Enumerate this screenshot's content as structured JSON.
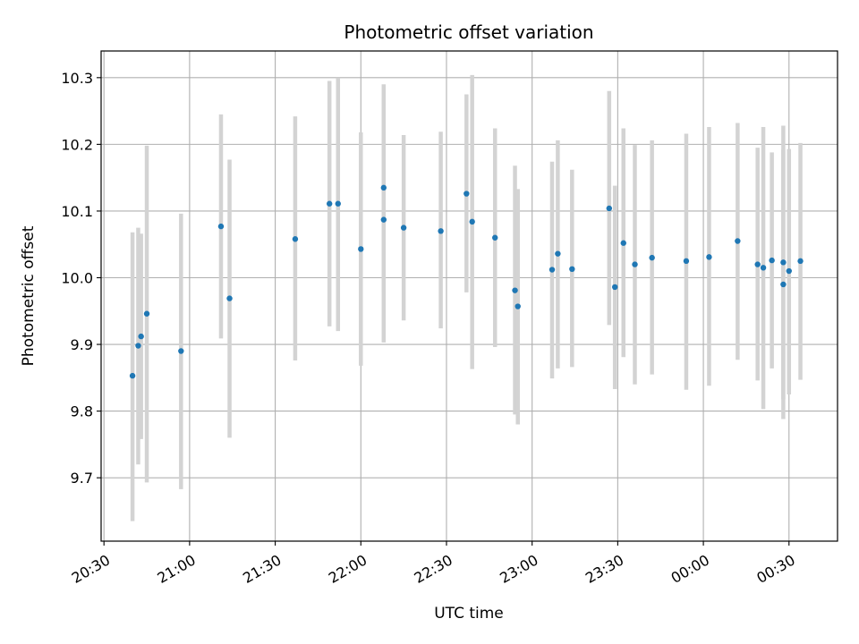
{
  "chart_data": {
    "type": "scatter",
    "title": "Photometric offset variation",
    "xlabel": "UTC time",
    "ylabel": "Photometric offset",
    "x_ticks": [
      "20:30",
      "21:00",
      "21:30",
      "22:00",
      "22:30",
      "23:00",
      "23:30",
      "00:00",
      "00:30"
    ],
    "y_ticks": [
      "9.7",
      "9.8",
      "9.9",
      "10.0",
      "10.1",
      "10.2",
      "10.3"
    ],
    "ylim": [
      9.605,
      10.34
    ],
    "xlim": [
      "20:29",
      "00:47"
    ],
    "grid": true,
    "colors": {
      "points": "#1f77b4",
      "errorbars": "#d3d3d3",
      "grid": "#b0b0b0"
    },
    "points": [
      {
        "x": "20:40",
        "y": 9.853,
        "err_low": 9.635,
        "err_high": 10.068
      },
      {
        "x": "20:42",
        "y": 9.898,
        "err_low": 9.72,
        "err_high": 10.075
      },
      {
        "x": "20:43",
        "y": 9.912,
        "err_low": 9.758,
        "err_high": 10.066
      },
      {
        "x": "20:45",
        "y": 9.946,
        "err_low": 9.693,
        "err_high": 10.198
      },
      {
        "x": "20:57",
        "y": 9.89,
        "err_low": 9.683,
        "err_high": 10.096
      },
      {
        "x": "21:11",
        "y": 10.077,
        "err_low": 9.909,
        "err_high": 10.245
      },
      {
        "x": "21:14",
        "y": 9.969,
        "err_low": 9.76,
        "err_high": 10.177
      },
      {
        "x": "21:37",
        "y": 10.058,
        "err_low": 9.876,
        "err_high": 10.242
      },
      {
        "x": "21:49",
        "y": 10.111,
        "err_low": 9.927,
        "err_high": 10.295
      },
      {
        "x": "21:52",
        "y": 10.111,
        "err_low": 9.92,
        "err_high": 10.3
      },
      {
        "x": "22:00",
        "y": 10.043,
        "err_low": 9.868,
        "err_high": 10.218
      },
      {
        "x": "22:08",
        "y": 10.087,
        "err_low": 9.903,
        "err_high": 10.27
      },
      {
        "x": "22:08",
        "y": 10.135,
        "err_low": 9.98,
        "err_high": 10.29
      },
      {
        "x": "22:15",
        "y": 10.075,
        "err_low": 9.936,
        "err_high": 10.214
      },
      {
        "x": "22:28",
        "y": 10.07,
        "err_low": 9.924,
        "err_high": 10.219
      },
      {
        "x": "22:37",
        "y": 10.126,
        "err_low": 9.978,
        "err_high": 10.275
      },
      {
        "x": "22:39",
        "y": 10.084,
        "err_low": 9.863,
        "err_high": 10.304
      },
      {
        "x": "22:47",
        "y": 10.06,
        "err_low": 9.896,
        "err_high": 10.224
      },
      {
        "x": "22:54",
        "y": 9.981,
        "err_low": 9.795,
        "err_high": 10.168
      },
      {
        "x": "22:55",
        "y": 9.957,
        "err_low": 9.78,
        "err_high": 10.133
      },
      {
        "x": "23:07",
        "y": 10.012,
        "err_low": 9.849,
        "err_high": 10.174
      },
      {
        "x": "23:09",
        "y": 10.036,
        "err_low": 9.864,
        "err_high": 10.206
      },
      {
        "x": "23:14",
        "y": 10.013,
        "err_low": 9.866,
        "err_high": 10.162
      },
      {
        "x": "23:27",
        "y": 10.104,
        "err_low": 9.929,
        "err_high": 10.28
      },
      {
        "x": "23:29",
        "y": 9.986,
        "err_low": 9.833,
        "err_high": 10.138
      },
      {
        "x": "23:32",
        "y": 10.052,
        "err_low": 9.881,
        "err_high": 10.224
      },
      {
        "x": "23:36",
        "y": 10.02,
        "err_low": 9.84,
        "err_high": 10.199
      },
      {
        "x": "23:42",
        "y": 10.03,
        "err_low": 9.855,
        "err_high": 10.206
      },
      {
        "x": "23:54",
        "y": 10.025,
        "err_low": 9.832,
        "err_high": 10.216
      },
      {
        "x": "00:02",
        "y": 10.031,
        "err_low": 9.838,
        "err_high": 10.226
      },
      {
        "x": "00:12",
        "y": 10.055,
        "err_low": 9.877,
        "err_high": 10.232
      },
      {
        "x": "00:19",
        "y": 10.02,
        "err_low": 9.846,
        "err_high": 10.195
      },
      {
        "x": "00:21",
        "y": 10.015,
        "err_low": 9.803,
        "err_high": 10.226
      },
      {
        "x": "00:24",
        "y": 10.026,
        "err_low": 9.864,
        "err_high": 10.188
      },
      {
        "x": "00:28",
        "y": 9.99,
        "err_low": 9.788,
        "err_high": 10.192
      },
      {
        "x": "00:28",
        "y": 10.023,
        "err_low": 9.818,
        "err_high": 10.228
      },
      {
        "x": "00:30",
        "y": 10.01,
        "err_low": 9.825,
        "err_high": 10.193
      },
      {
        "x": "00:34",
        "y": 10.025,
        "err_low": 9.847,
        "err_high": 10.202
      }
    ]
  }
}
